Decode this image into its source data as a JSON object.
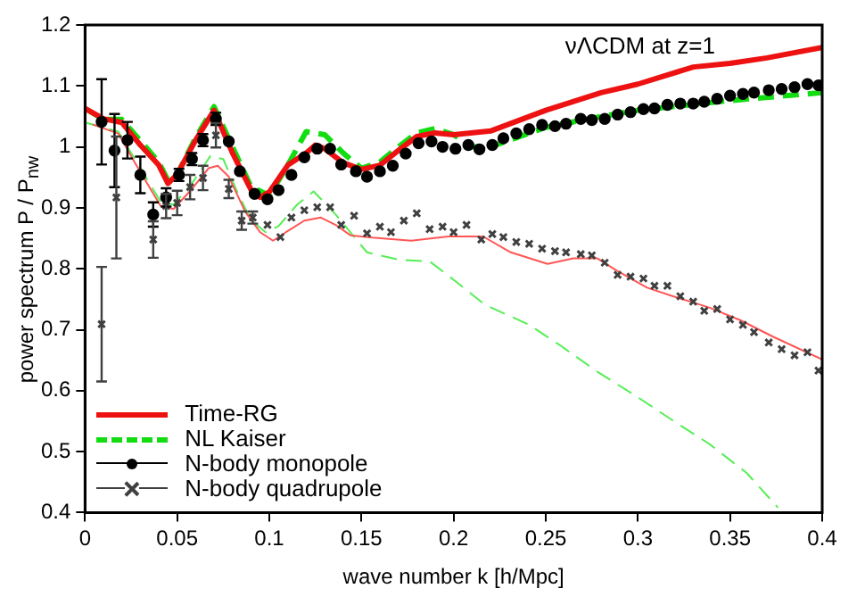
{
  "chart_data": {
    "type": "line",
    "xlabel": "wave number k [h/Mpc]",
    "ylabel": "power spectrum P / P$_{nw}$",
    "annotations": [
      "νΛCDM at z=1"
    ],
    "xlim": [
      0,
      0.4
    ],
    "xticks": [
      0,
      0.05,
      0.1,
      0.15,
      0.2,
      0.25,
      0.3,
      0.35,
      0.4
    ],
    "ylim": [
      0.4,
      1.2
    ],
    "yticks": [
      0.4,
      0.5,
      0.6,
      0.7,
      0.8,
      0.9,
      1,
      1.1,
      1.2
    ],
    "legend": "bottom left",
    "series": [
      {
        "name": "Time-RG",
        "color": "#ee1111",
        "marker": "none",
        "line_style": "solid",
        "x": [
          0,
          0.01,
          0.02,
          0.03,
          0.04,
          0.045,
          0.05,
          0.06,
          0.07,
          0.08,
          0.09,
          0.095,
          0.1,
          0.11,
          0.12,
          0.125,
          0.13,
          0.14,
          0.15,
          0.16,
          0.17,
          0.18,
          0.19,
          0.2,
          0.22,
          0.25,
          0.28,
          0.3,
          0.33,
          0.35,
          0.37,
          0.4
        ],
        "values": [
          1.063,
          1.046,
          1.04,
          1.003,
          0.97,
          0.94,
          0.955,
          1.011,
          1.06,
          0.99,
          0.93,
          0.917,
          0.926,
          0.97,
          0.99,
          1.003,
          0.997,
          0.974,
          0.963,
          0.97,
          0.994,
          1.017,
          1.023,
          1.02,
          1.026,
          1.06,
          1.089,
          1.103,
          1.131,
          1.137,
          1.146,
          1.163
        ]
      },
      {
        "name": "NL Kaiser",
        "color": "#11dd11",
        "marker": "none",
        "line_style": "dashed",
        "x": [
          0,
          0.01,
          0.02,
          0.03,
          0.04,
          0.045,
          0.05,
          0.06,
          0.07,
          0.08,
          0.09,
          0.1,
          0.11,
          0.12,
          0.13,
          0.14,
          0.15,
          0.16,
          0.17,
          0.18,
          0.19,
          0.2,
          0.21,
          0.22,
          0.25,
          0.28,
          0.3,
          0.35,
          0.4
        ],
        "values": [
          1.063,
          1.045,
          1.045,
          1.01,
          0.975,
          0.945,
          0.955,
          1.015,
          1.066,
          1.0,
          0.935,
          0.92,
          0.97,
          1.025,
          1.02,
          0.99,
          0.965,
          0.975,
          1.0,
          1.023,
          1.03,
          1.02,
          1.0,
          1.0,
          1.032,
          1.05,
          1.06,
          1.076,
          1.089
        ]
      },
      {
        "name": "N-body monopole",
        "type": "scatter",
        "color": "#000000",
        "marker": "circle",
        "x": [
          0.009,
          0.016,
          0.023,
          0.03,
          0.037,
          0.044,
          0.051,
          0.058,
          0.064,
          0.071,
          0.078,
          0.084,
          0.092,
          0.099,
          0.105,
          0.112,
          0.119,
          0.126,
          0.133,
          0.139,
          0.147,
          0.153,
          0.16,
          0.167,
          0.174,
          0.181,
          0.188,
          0.194,
          0.201,
          0.208,
          0.214,
          0.221,
          0.227,
          0.234,
          0.241,
          0.248,
          0.255,
          0.261,
          0.269,
          0.275,
          0.282,
          0.289,
          0.296,
          0.303,
          0.309,
          0.316,
          0.323,
          0.33,
          0.336,
          0.343,
          0.35,
          0.357,
          0.363,
          0.371,
          0.378,
          0.385,
          0.392,
          0.398
        ],
        "values": [
          1.041,
          0.994,
          1.011,
          0.954,
          0.889,
          0.917,
          0.954,
          0.98,
          1.011,
          1.046,
          1.009,
          0.96,
          0.923,
          0.914,
          0.929,
          0.954,
          0.983,
          0.997,
          0.997,
          0.971,
          0.96,
          0.951,
          0.96,
          0.969,
          0.989,
          1.006,
          1.009,
          1.0,
          0.997,
          1.003,
          0.996,
          1.003,
          1.014,
          1.022,
          1.029,
          1.036,
          1.034,
          1.038,
          1.046,
          1.044,
          1.046,
          1.053,
          1.057,
          1.062,
          1.063,
          1.069,
          1.071,
          1.071,
          1.074,
          1.079,
          1.084,
          1.087,
          1.089,
          1.093,
          1.095,
          1.098,
          1.103,
          1.101
        ],
        "errors": [
          0.07,
          0.06,
          0.03,
          0.03,
          0.02,
          0.015,
          0.01,
          0.01,
          0.01,
          0.01,
          null,
          null,
          null,
          null,
          null,
          null,
          null,
          null,
          null,
          null,
          null,
          null,
          null,
          null,
          null,
          null,
          null,
          null,
          null,
          null,
          null,
          null,
          null,
          null,
          null,
          null,
          null,
          null,
          null,
          null,
          null,
          null,
          null,
          null,
          null,
          null,
          null,
          null,
          null,
          null,
          null,
          null,
          null,
          null,
          null,
          null,
          null,
          null
        ]
      },
      {
        "name": "N-body quadrupole",
        "type": "scatter",
        "color": "#404040",
        "marker": "cross",
        "x": [
          0.009,
          0.017,
          0.037,
          0.044,
          0.05,
          0.057,
          0.064,
          0.071,
          0.078,
          0.085,
          0.091,
          0.099,
          0.106,
          0.112,
          0.119,
          0.126,
          0.133,
          0.139,
          0.146,
          0.153,
          0.16,
          0.166,
          0.173,
          0.18,
          0.187,
          0.194,
          0.2,
          0.207,
          0.215,
          0.221,
          0.227,
          0.234,
          0.241,
          0.248,
          0.255,
          0.261,
          0.269,
          0.275,
          0.282,
          0.289,
          0.296,
          0.303,
          0.309,
          0.316,
          0.323,
          0.33,
          0.336,
          0.343,
          0.35,
          0.357,
          0.363,
          0.371,
          0.378,
          0.385,
          0.392,
          0.398
        ],
        "values": [
          0.709,
          0.917,
          0.848,
          0.903,
          0.908,
          0.934,
          0.949,
          1.019,
          0.931,
          0.879,
          0.884,
          0.872,
          0.852,
          0.884,
          0.896,
          0.901,
          0.901,
          0.872,
          0.887,
          0.858,
          0.869,
          0.86,
          0.879,
          0.891,
          0.865,
          0.869,
          0.86,
          0.872,
          0.848,
          0.857,
          0.852,
          0.844,
          0.841,
          0.833,
          0.829,
          0.827,
          0.824,
          0.822,
          0.81,
          0.79,
          0.787,
          0.784,
          0.772,
          0.772,
          0.755,
          0.746,
          0.731,
          0.734,
          0.717,
          0.708,
          0.696,
          0.679,
          0.668,
          0.658,
          0.663,
          0.633
        ],
        "errors": [
          0.094,
          0.1,
          0.03,
          0.02,
          0.02,
          0.02,
          0.02,
          0.02,
          0.015,
          0.015,
          0.01,
          null,
          null,
          null,
          null,
          null,
          null,
          null,
          null,
          null,
          null,
          null,
          null,
          null,
          null,
          null,
          null,
          null,
          null,
          null,
          null,
          null,
          null,
          null,
          null,
          null,
          null,
          null,
          null,
          null,
          null,
          null,
          null,
          null,
          null,
          null,
          null,
          null,
          null,
          null,
          null,
          null,
          null,
          null,
          null,
          null
        ]
      },
      {
        "color": "#ff5555",
        "marker": "none",
        "line_style": "solid",
        "x": [
          0.004,
          0.018,
          0.028,
          0.041,
          0.048,
          0.058,
          0.067,
          0.072,
          0.078,
          0.087,
          0.095,
          0.102,
          0.109,
          0.119,
          0.128,
          0.136,
          0.144,
          0.156,
          0.177,
          0.197,
          0.216,
          0.231,
          0.251,
          0.265,
          0.278,
          0.288,
          0.305,
          0.319,
          0.339,
          0.356,
          0.373,
          0.4
        ],
        "values": [
          1.037,
          1.022,
          0.969,
          0.903,
          0.898,
          0.931,
          0.965,
          0.969,
          0.951,
          0.893,
          0.86,
          0.846,
          0.86,
          0.879,
          0.884,
          0.872,
          0.855,
          0.851,
          0.846,
          0.853,
          0.853,
          0.827,
          0.808,
          0.817,
          0.817,
          0.798,
          0.769,
          0.755,
          0.736,
          0.715,
          0.689,
          0.651
        ]
      },
      {
        "color": "#55ee55",
        "marker": "none",
        "line_style": "dashed",
        "x": [
          0,
          0.018,
          0.028,
          0.041,
          0.048,
          0.058,
          0.068,
          0.075,
          0.082,
          0.09,
          0.098,
          0.105,
          0.115,
          0.124,
          0.136,
          0.153,
          0.17,
          0.187,
          0.197,
          0.217,
          0.241,
          0.258,
          0.278,
          0.298,
          0.319,
          0.339,
          0.359,
          0.376
        ],
        "values": [
          1.04,
          1.025,
          0.975,
          0.91,
          0.905,
          0.94,
          0.985,
          0.98,
          0.93,
          0.88,
          0.86,
          0.87,
          0.905,
          0.927,
          0.889,
          0.827,
          0.815,
          0.812,
          0.789,
          0.741,
          0.708,
          0.674,
          0.631,
          0.593,
          0.551,
          0.512,
          0.465,
          0.408
        ]
      }
    ]
  }
}
